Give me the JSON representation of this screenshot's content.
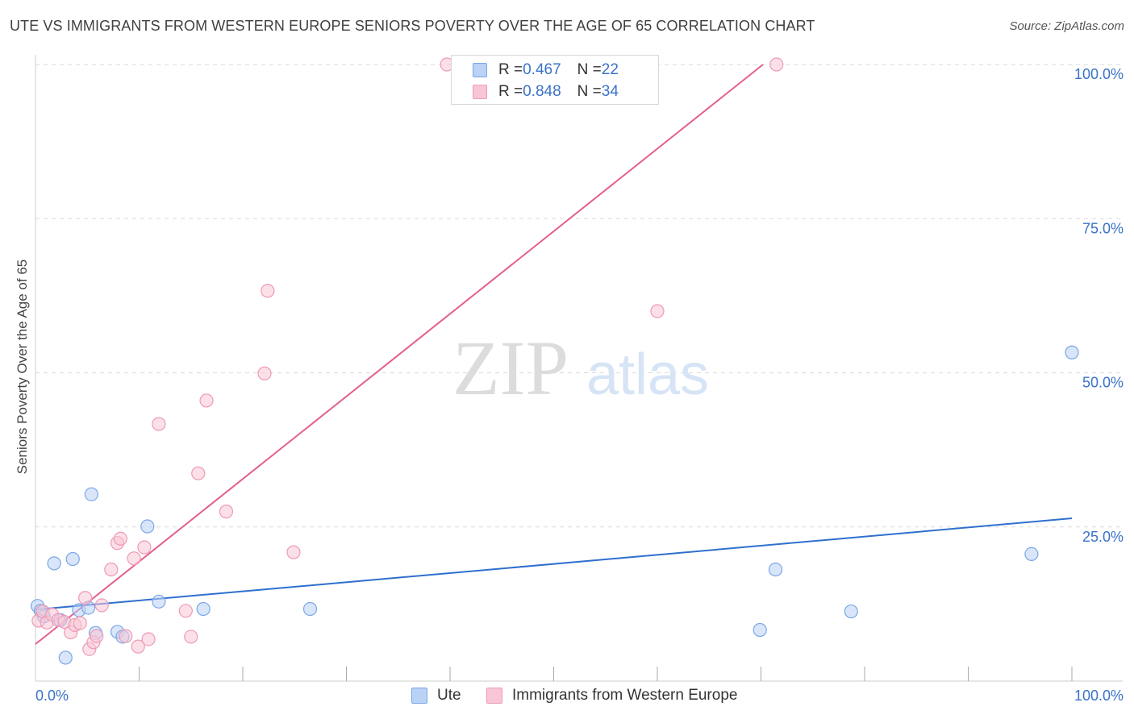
{
  "title": "UTE VS IMMIGRANTS FROM WESTERN EUROPE SENIORS POVERTY OVER THE AGE OF 65 CORRELATION CHART",
  "source": "Source: ZipAtlas.com",
  "watermark": {
    "zip": "ZIP",
    "atlas": "atlas"
  },
  "legend": {
    "ute": {
      "r_label": "R = ",
      "r_value": "0.467",
      "n_label": "N = ",
      "n_value": "22"
    },
    "imm": {
      "r_label": "R = ",
      "r_value": "0.848",
      "n_label": "N = ",
      "n_value": "34"
    }
  },
  "bottom_legend": {
    "ute": "Ute",
    "imm": "Immigrants from Western Europe"
  },
  "colors": {
    "ute_fill": "#b9d2f5",
    "ute_stroke": "#7aa7e6",
    "ute_line": "#2f6fcf",
    "imm_fill": "#f8c6d6",
    "imm_stroke": "#ee9ab5",
    "imm_line": "#e45f8e",
    "tick_label": "#3a72c8",
    "grid": "#d9d9d9"
  },
  "chart_data": {
    "type": "scatter",
    "title": "UTE VS IMMIGRANTS FROM WESTERN EUROPE SENIORS POVERTY OVER THE AGE OF 65 CORRELATION CHART",
    "xlabel": "",
    "ylabel": "Seniors Poverty Over the Age of 65",
    "xlim": [
      0,
      100
    ],
    "ylim": [
      0,
      100
    ],
    "x_tick_labels": [
      {
        "value": 0,
        "label": "0.0%"
      },
      {
        "value": 100,
        "label": "100.0%"
      }
    ],
    "y_tick_labels": [
      {
        "value": 25,
        "label": "25.0%"
      },
      {
        "value": 50,
        "label": "50.0%"
      },
      {
        "value": 75,
        "label": "75.0%"
      },
      {
        "value": 100,
        "label": "100.0%"
      }
    ],
    "series": [
      {
        "name": "Ute",
        "r": 0.467,
        "n": 22,
        "trend": {
          "x": [
            0,
            100
          ],
          "y": [
            11.6,
            26.4
          ]
        },
        "points": [
          {
            "x": 0.2,
            "y": 12.2
          },
          {
            "x": 0.8,
            "y": 10.5
          },
          {
            "x": 1.8,
            "y": 19.1
          },
          {
            "x": 2.4,
            "y": 9.9
          },
          {
            "x": 2.9,
            "y": 3.8
          },
          {
            "x": 3.6,
            "y": 19.8
          },
          {
            "x": 4.2,
            "y": 11.5
          },
          {
            "x": 5.1,
            "y": 11.9
          },
          {
            "x": 5.4,
            "y": 30.3
          },
          {
            "x": 5.8,
            "y": 7.8
          },
          {
            "x": 7.9,
            "y": 8.0
          },
          {
            "x": 8.4,
            "y": 7.2
          },
          {
            "x": 10.8,
            "y": 25.1
          },
          {
            "x": 11.9,
            "y": 12.9
          },
          {
            "x": 16.2,
            "y": 11.7
          },
          {
            "x": 26.5,
            "y": 11.7
          },
          {
            "x": 69.9,
            "y": 8.3
          },
          {
            "x": 71.4,
            "y": 18.1
          },
          {
            "x": 78.7,
            "y": 11.3
          },
          {
            "x": 96.1,
            "y": 20.6
          },
          {
            "x": 100.0,
            "y": 53.3
          },
          {
            "x": 0.5,
            "y": 11.4
          }
        ]
      },
      {
        "name": "Immigrants from Western Europe",
        "r": 0.848,
        "n": 34,
        "trend": {
          "x": [
            0,
            70.2
          ],
          "y": [
            6.0,
            100.0
          ]
        },
        "points": [
          {
            "x": 0.3,
            "y": 9.8
          },
          {
            "x": 0.7,
            "y": 11.3
          },
          {
            "x": 1.1,
            "y": 9.5
          },
          {
            "x": 1.6,
            "y": 10.8
          },
          {
            "x": 2.2,
            "y": 9.9
          },
          {
            "x": 2.8,
            "y": 9.6
          },
          {
            "x": 3.4,
            "y": 7.9
          },
          {
            "x": 3.8,
            "y": 9.1
          },
          {
            "x": 4.3,
            "y": 9.4
          },
          {
            "x": 4.8,
            "y": 13.5
          },
          {
            "x": 5.2,
            "y": 5.2
          },
          {
            "x": 5.6,
            "y": 6.3
          },
          {
            "x": 5.9,
            "y": 7.3
          },
          {
            "x": 6.4,
            "y": 12.3
          },
          {
            "x": 7.3,
            "y": 18.1
          },
          {
            "x": 7.9,
            "y": 22.4
          },
          {
            "x": 8.2,
            "y": 23.1
          },
          {
            "x": 8.7,
            "y": 7.3
          },
          {
            "x": 9.5,
            "y": 19.9
          },
          {
            "x": 9.9,
            "y": 5.6
          },
          {
            "x": 10.5,
            "y": 21.7
          },
          {
            "x": 10.9,
            "y": 6.8
          },
          {
            "x": 11.9,
            "y": 41.7
          },
          {
            "x": 14.5,
            "y": 11.4
          },
          {
            "x": 15.0,
            "y": 7.2
          },
          {
            "x": 15.7,
            "y": 33.7
          },
          {
            "x": 16.5,
            "y": 45.5
          },
          {
            "x": 18.4,
            "y": 27.5
          },
          {
            "x": 22.1,
            "y": 49.9
          },
          {
            "x": 22.4,
            "y": 63.3
          },
          {
            "x": 24.9,
            "y": 20.9
          },
          {
            "x": 39.7,
            "y": 100.0
          },
          {
            "x": 60.0,
            "y": 60.0
          },
          {
            "x": 71.5,
            "y": 100.0
          }
        ]
      }
    ]
  }
}
